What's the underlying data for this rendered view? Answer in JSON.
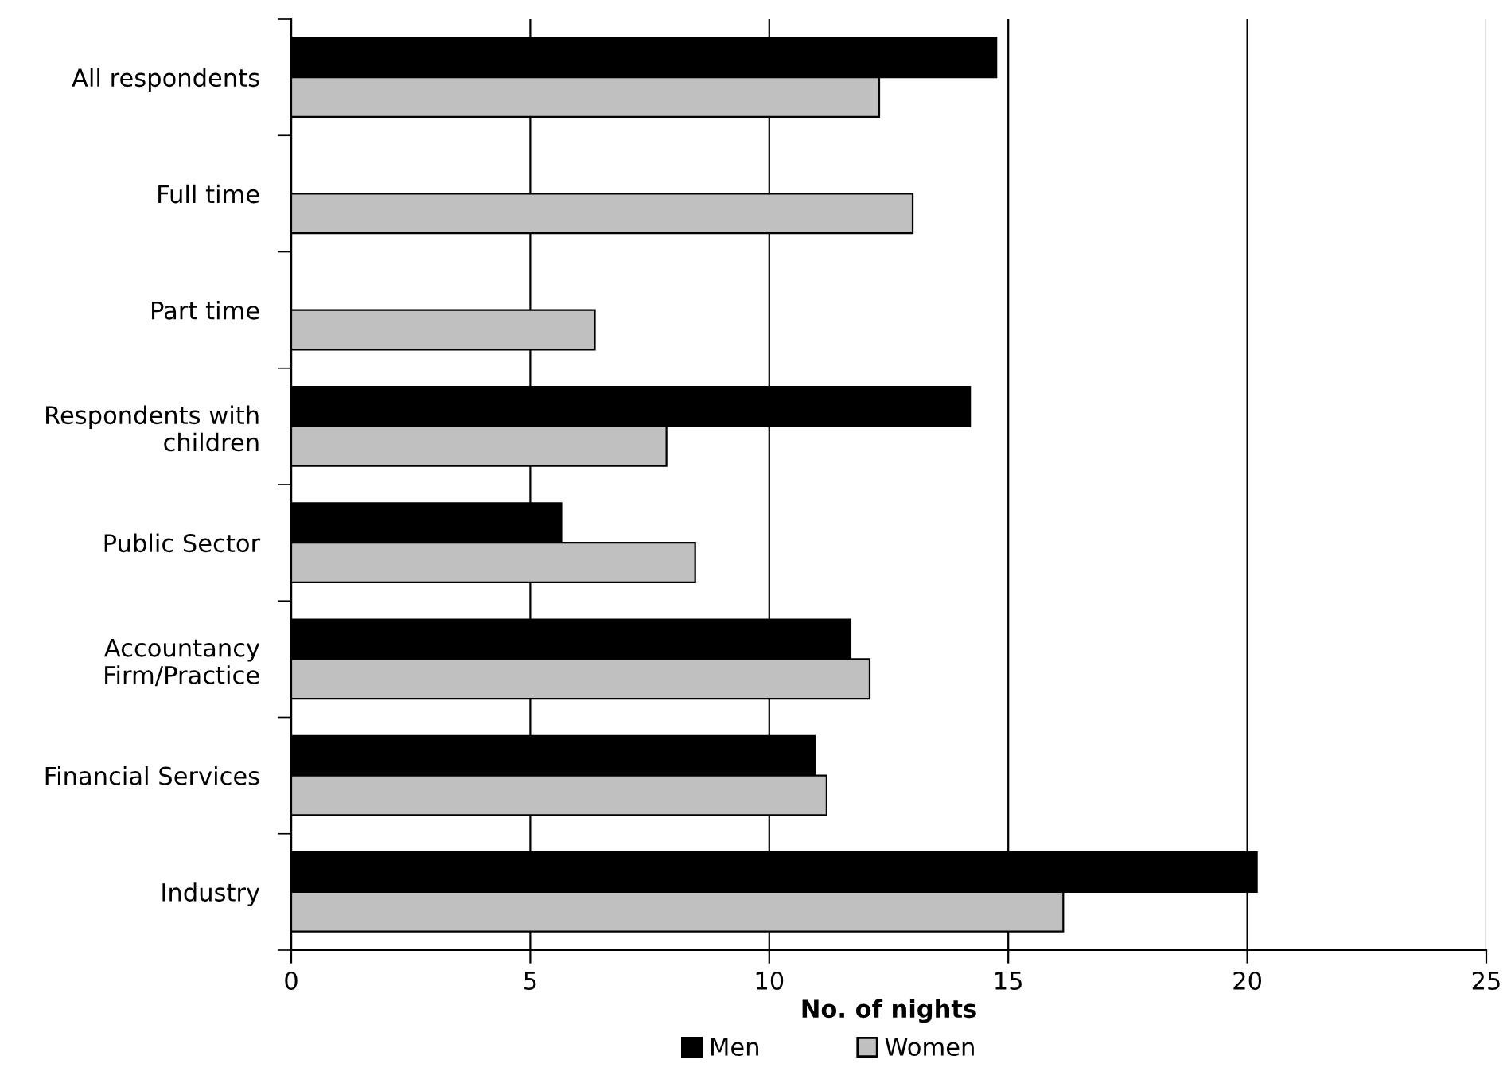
{
  "chart_data": {
    "type": "bar",
    "orientation": "horizontal",
    "xlabel": "No. of nights",
    "categories": [
      "All respondents",
      "Full time",
      "Part time",
      "Respondents with\nchildren",
      "Public Sector",
      "Accountancy\nFirm/Practice",
      "Financial Services",
      "Industry"
    ],
    "series": [
      {
        "name": "Men",
        "color": "#000000",
        "values": [
          14.75,
          null,
          null,
          14.2,
          5.65,
          11.7,
          10.95,
          20.2
        ]
      },
      {
        "name": "Women",
        "color": "#c0c0c0",
        "values": [
          12.3,
          13.0,
          6.35,
          7.85,
          8.45,
          12.1,
          11.2,
          16.15
        ]
      }
    ],
    "xlim": [
      0,
      25
    ],
    "xticks": [
      0,
      5,
      10,
      15,
      20,
      25
    ],
    "grid": "x",
    "legend": "bottom"
  }
}
